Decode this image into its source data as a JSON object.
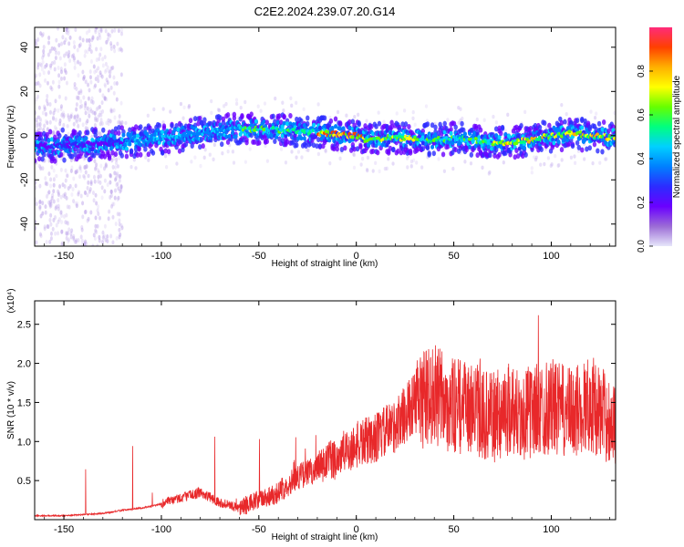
{
  "title": "C2E2.2024.239.07.20.G14",
  "chart_data": [
    {
      "type": "heatmap",
      "xlabel": "Height of straight line (km)",
      "ylabel": "Frequency (Hz)",
      "xlim": [
        -165,
        133
      ],
      "ylim": [
        -50,
        49
      ],
      "xticks": [
        -150,
        -100,
        -50,
        0,
        50,
        100
      ],
      "yticks": [
        -40,
        -20,
        0,
        20,
        40
      ],
      "colorbar": {
        "label": "Normalized spectral amplitude",
        "range": [
          0,
          1
        ],
        "ticks": [
          "0.0",
          "0.2",
          "0.4",
          "0.6",
          "0.8"
        ],
        "tick_values": [
          0.0,
          0.2,
          0.4,
          0.6,
          0.8
        ],
        "colors": [
          "#e6e6fa",
          "#9b6bd6",
          "#6a00ff",
          "#2c2cff",
          "#0080ff",
          "#00d0ff",
          "#00ff7f",
          "#66ff00",
          "#ffff00",
          "#ffb000",
          "#ff4000",
          "#ff2a7a"
        ]
      },
      "ridge": {
        "height_km": [
          -165,
          -140,
          -120,
          -100,
          -80,
          -60,
          -45,
          -30,
          -15,
          0,
          5,
          15,
          30,
          40,
          50,
          60,
          70,
          80,
          90,
          100,
          110,
          120,
          133
        ],
        "frequency_hz": [
          -5,
          -4,
          -3,
          -1,
          1,
          3,
          3,
          2,
          1,
          0,
          -2,
          -1,
          -1,
          -2,
          -1,
          -2,
          -3,
          -3,
          -2,
          0,
          1,
          0,
          -1
        ]
      }
    },
    {
      "type": "line",
      "xlabel": "Height of straight line (km)",
      "ylabel": "SNR (10 * v/v)",
      "y_scale_note": "(x10⁴)",
      "xlim": [
        -165,
        133
      ],
      "ylim": [
        0,
        2.8
      ],
      "xticks": [
        -150,
        -100,
        -50,
        0,
        50,
        100
      ],
      "yticks": [
        0.5,
        1.0,
        1.5,
        2.0,
        2.5
      ],
      "ytick_labels": [
        "0.5",
        "1.0",
        "1.5",
        "2.0",
        "2.5"
      ],
      "color": "#e8282a",
      "series": [
        {
          "x": [
            -165,
            -150,
            -130,
            -120,
            -110,
            -100,
            -90,
            -80,
            -70,
            -60,
            -50,
            -40,
            -30,
            -20,
            -10,
            0,
            10,
            20,
            30,
            40,
            50,
            60,
            70,
            80,
            85,
            90,
            100,
            110,
            120,
            133
          ],
          "y": [
            0.05,
            0.05,
            0.08,
            0.12,
            0.15,
            0.2,
            0.28,
            0.35,
            0.22,
            0.15,
            0.25,
            0.35,
            0.55,
            0.65,
            0.8,
            0.95,
            1.05,
            1.2,
            1.5,
            1.6,
            1.45,
            1.4,
            1.3,
            1.45,
            1.3,
            1.4,
            1.45,
            1.35,
            1.5,
            1.2
          ]
        }
      ]
    }
  ]
}
